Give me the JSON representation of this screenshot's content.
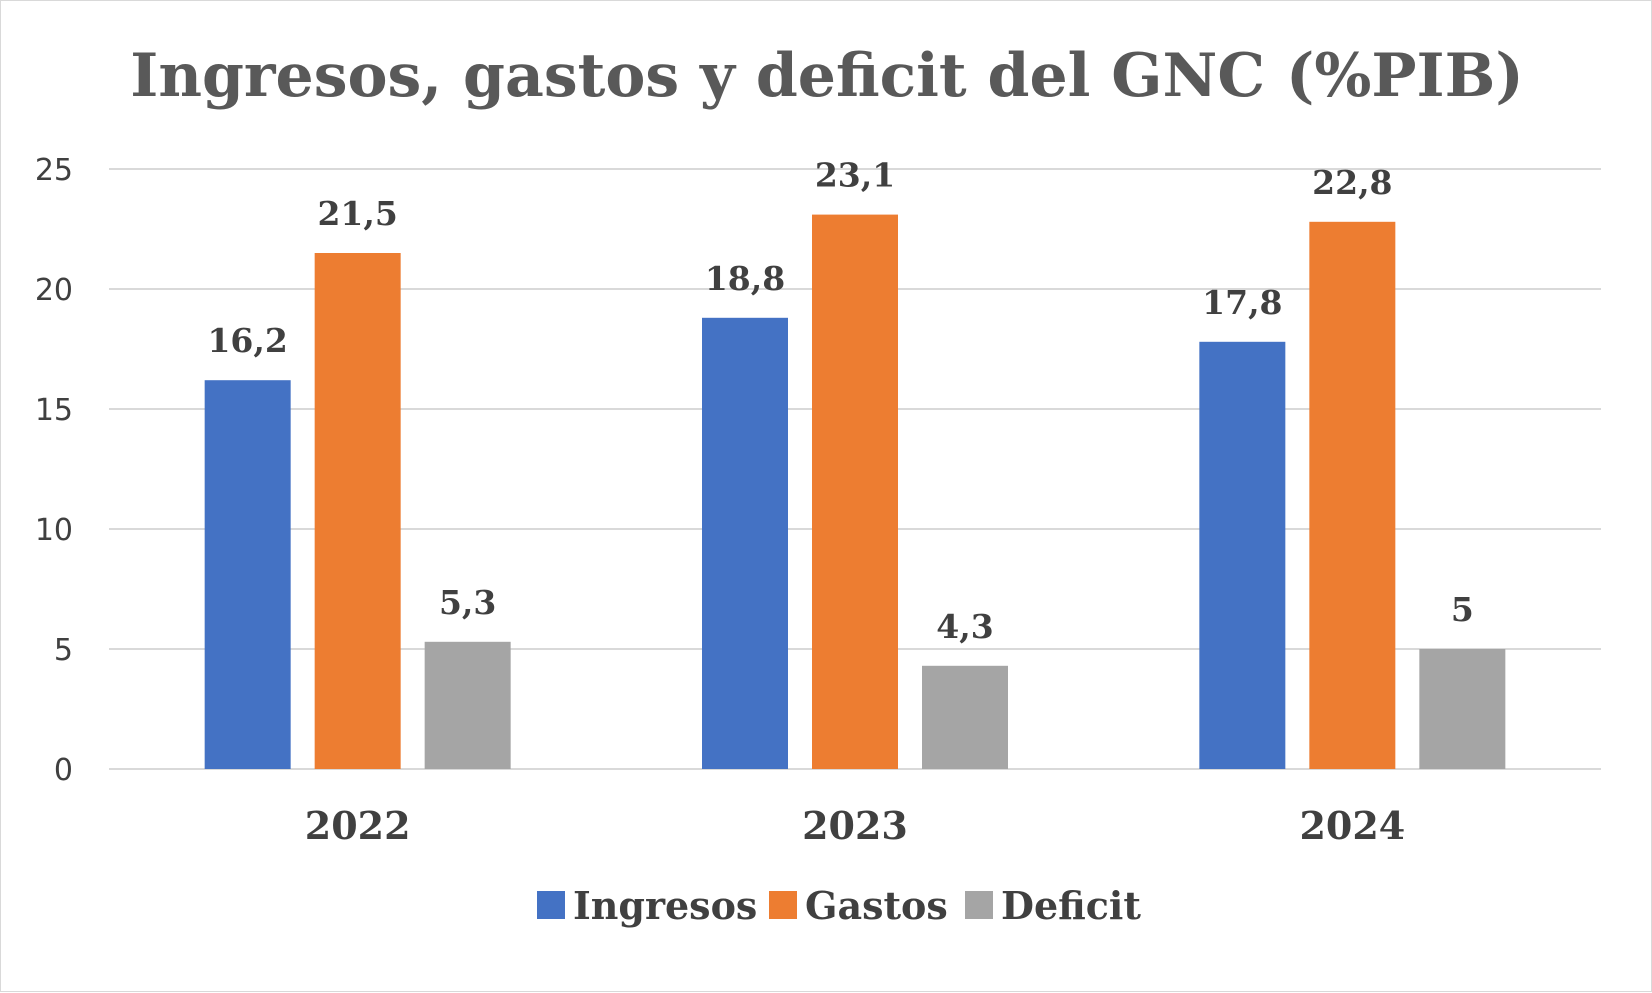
{
  "chart_data": {
    "type": "bar",
    "title": "Ingresos, gastos y deficit del GNC (%PIB)",
    "xlabel": "",
    "ylabel": "",
    "categories": [
      "2022",
      "2023",
      "2024"
    ],
    "series": [
      {
        "name": "Ingresos",
        "color": "#4472c4",
        "values": [
          16.2,
          18.8,
          17.8
        ],
        "labels": [
          "16,2",
          "18,8",
          "17,8"
        ]
      },
      {
        "name": "Gastos",
        "color": "#ed7d31",
        "values": [
          21.5,
          23.1,
          22.8
        ],
        "labels": [
          "21,5",
          "23,1",
          "22,8"
        ]
      },
      {
        "name": "Deficit",
        "color": "#a5a5a5",
        "values": [
          5.3,
          4.3,
          5
        ],
        "labels": [
          "5,3",
          "4,3",
          "5"
        ]
      }
    ],
    "ylim": [
      0,
      25
    ],
    "yticks": [
      0,
      5,
      10,
      15,
      20,
      25
    ],
    "grid": true,
    "legend_position": "bottom"
  }
}
